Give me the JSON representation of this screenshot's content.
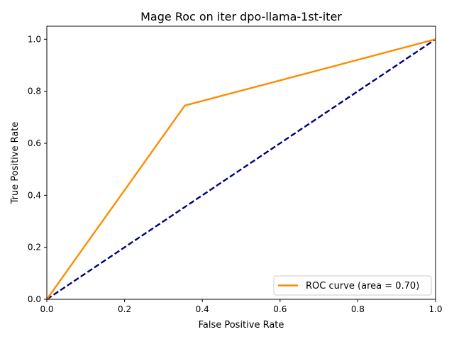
{
  "chart_data": {
    "type": "line",
    "title": "Mage Roc on iter dpo-llama-1st-iter",
    "xlabel": "False Positive Rate",
    "ylabel": "True Positive Rate",
    "xlim": [
      0.0,
      1.0
    ],
    "ylim": [
      0.0,
      1.05
    ],
    "xticks": [
      0.0,
      0.2,
      0.4,
      0.6,
      0.8,
      1.0
    ],
    "yticks": [
      0.0,
      0.2,
      0.4,
      0.6,
      0.8,
      1.0
    ],
    "xtick_labels": [
      "0.0",
      "0.2",
      "0.4",
      "0.6",
      "0.8",
      "1.0"
    ],
    "ytick_labels": [
      "0.0",
      "0.2",
      "0.4",
      "0.6",
      "0.8",
      "1.0"
    ],
    "grid": false,
    "legend_position": "lower-right",
    "series": [
      {
        "name": "ROC curve (area = 0.70)",
        "color": "#ff8c00",
        "style": "solid",
        "x": [
          0.0,
          0.355,
          1.0
        ],
        "y": [
          0.0,
          0.745,
          1.0
        ]
      },
      {
        "color": "#000080",
        "style": "dashed",
        "x": [
          0.0,
          1.0
        ],
        "y": [
          0.0,
          1.0
        ]
      }
    ]
  }
}
